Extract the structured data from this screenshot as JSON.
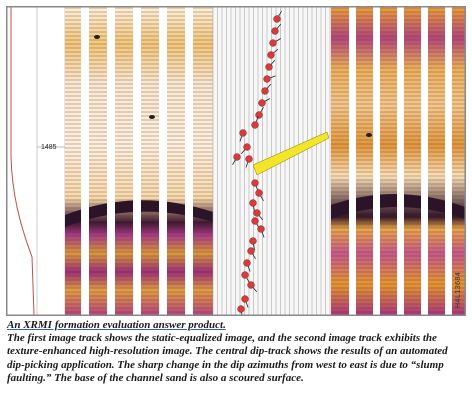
{
  "figure": {
    "depth_label": "1485",
    "figure_id": "H4L13684"
  },
  "caption": {
    "title": "An XRMI formation evaluation answer product.",
    "body": "The first image track shows the static-equalized image, and the second image track exhibits the texture-enhanced high-resolution image. The central dip-track shows the results of an automated dip-picking application. The sharp change in the dip azimuths from west to east is due to “slump faulting.” The base of the channel sand is also a scoured surface."
  },
  "colors": {
    "image_light": "#f3e1b0",
    "image_orange": "#e49a2e",
    "image_dark": "#2a1326",
    "image_magenta": "#b0357f",
    "dip_dot": "#d93a3a",
    "dip_tadpole_highlight": "#f2e52a",
    "curve": "#c0504a"
  }
}
